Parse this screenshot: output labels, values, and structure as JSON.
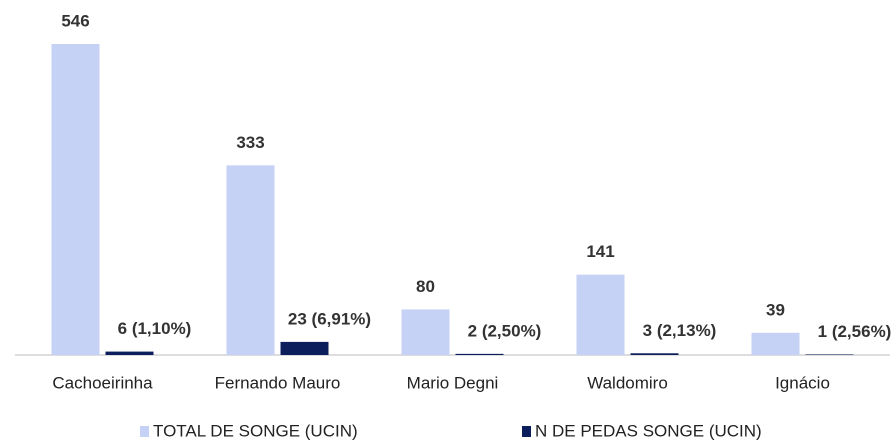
{
  "chart_data": {
    "type": "bar",
    "categories": [
      "Cachoeirinha",
      "Fernando Mauro",
      "Mario Degni",
      "Waldomiro",
      "Ignácio"
    ],
    "series": [
      {
        "name": "TOTAL DE SONGE (UCIN)",
        "color": "#c6d1f6",
        "values": [
          546,
          333,
          80,
          141,
          39
        ]
      },
      {
        "name": "N DE PEDAS SONGE (UCIN)",
        "color": "#0c1f5c",
        "values": [
          6,
          23,
          2,
          3,
          1
        ],
        "value_labels": [
          "6 (1,10%)",
          "23 (6,91%)",
          "2 (2,50%)",
          "3 (2,13%)",
          "1 (2,56%)"
        ]
      }
    ]
  }
}
